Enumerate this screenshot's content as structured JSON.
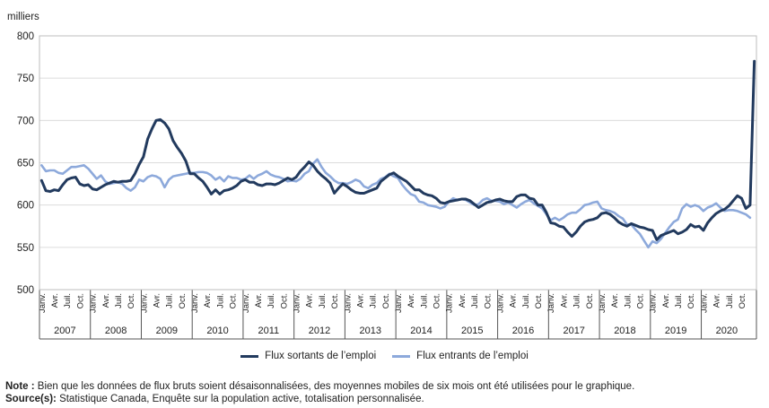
{
  "chart_data": {
    "type": "line",
    "unit_label": "milliers",
    "ylim": [
      500,
      800
    ],
    "yticks": [
      500,
      550,
      600,
      650,
      700,
      750,
      800
    ],
    "grid": true,
    "legend_position": "bottom",
    "start": "2007-01",
    "end": "2020-03",
    "month_labels": [
      "Janv.",
      "Avr.",
      "Juil.",
      "Oct."
    ],
    "years": [
      "2007",
      "2008",
      "2009",
      "2010",
      "2011",
      "2012",
      "2013",
      "2014",
      "2015",
      "2016",
      "2017",
      "2018",
      "2019",
      "2020"
    ],
    "series": [
      {
        "name": "Flux sortants de l’emploi",
        "color": "#223a5e",
        "values": [
          629,
          617,
          616,
          618,
          617,
          624,
          630,
          632,
          633,
          625,
          623,
          624,
          619,
          618,
          621,
          624,
          626,
          628,
          627,
          628,
          628,
          629,
          637,
          648,
          657,
          678,
          690,
          700,
          701,
          697,
          690,
          676,
          668,
          661,
          652,
          637,
          637,
          632,
          628,
          621,
          613,
          618,
          613,
          617,
          618,
          620,
          623,
          628,
          630,
          627,
          627,
          624,
          623,
          625,
          625,
          624,
          626,
          629,
          632,
          630,
          633,
          640,
          645,
          651,
          647,
          640,
          635,
          631,
          626,
          614,
          620,
          625,
          622,
          618,
          615,
          614,
          614,
          616,
          618,
          620,
          628,
          632,
          636,
          638,
          634,
          631,
          628,
          623,
          618,
          618,
          614,
          612,
          611,
          608,
          603,
          602,
          604,
          605,
          606,
          607,
          607,
          605,
          601,
          597,
          600,
          603,
          604,
          606,
          607,
          605,
          604,
          604,
          610,
          612,
          612,
          608,
          607,
          600,
          600,
          591,
          579,
          578,
          575,
          574,
          568,
          563,
          568,
          575,
          580,
          582,
          583,
          585,
          590,
          591,
          589,
          585,
          580,
          577,
          575,
          578,
          576,
          574,
          573,
          571,
          570,
          559,
          564,
          566,
          568,
          570,
          566,
          568,
          571,
          577,
          574,
          575,
          570,
          579,
          585,
          590,
          593,
          595,
          599,
          605,
          611,
          608,
          596,
          600,
          770
        ]
      },
      {
        "name": "Flux entrants de l’emploi",
        "color": "#8da9db",
        "values": [
          647,
          640,
          641,
          641,
          638,
          637,
          641,
          645,
          645,
          646,
          647,
          643,
          637,
          631,
          635,
          628,
          625,
          626,
          627,
          625,
          620,
          617,
          621,
          630,
          628,
          633,
          635,
          634,
          631,
          621,
          630,
          634,
          635,
          636,
          637,
          638,
          638,
          639,
          639,
          638,
          635,
          630,
          633,
          628,
          634,
          632,
          632,
          630,
          631,
          635,
          631,
          635,
          637,
          640,
          636,
          634,
          633,
          631,
          628,
          629,
          628,
          631,
          637,
          640,
          649,
          654,
          645,
          638,
          634,
          629,
          626,
          626,
          625,
          627,
          630,
          628,
          622,
          620,
          624,
          626,
          631,
          633,
          637,
          634,
          632,
          624,
          618,
          613,
          611,
          604,
          603,
          600,
          599,
          598,
          596,
          598,
          604,
          608,
          606,
          607,
          606,
          603,
          600,
          601,
          606,
          608,
          605,
          605,
          604,
          601,
          603,
          600,
          597,
          601,
          604,
          606,
          602,
          599,
          596,
          589,
          582,
          585,
          582,
          585,
          589,
          591,
          591,
          595,
          600,
          601,
          603,
          604,
          596,
          594,
          593,
          591,
          587,
          584,
          577,
          577,
          571,
          566,
          558,
          550,
          557,
          555,
          560,
          567,
          574,
          580,
          583,
          596,
          601,
          598,
          600,
          598,
          593,
          597,
          599,
          602,
          597,
          593,
          594,
          594,
          593,
          591,
          589,
          585
        ]
      }
    ]
  },
  "notes": {
    "note_label": "Note :",
    "note_text": " Bien que les données de flux bruts soient désaisonnalisées, des moyennes mobiles de six mois ont été utilisées pour le graphique.",
    "source_label": "Source(s):",
    "source_text": " Statistique Canada, Enquête sur la population active, totalisation personnalisée."
  }
}
